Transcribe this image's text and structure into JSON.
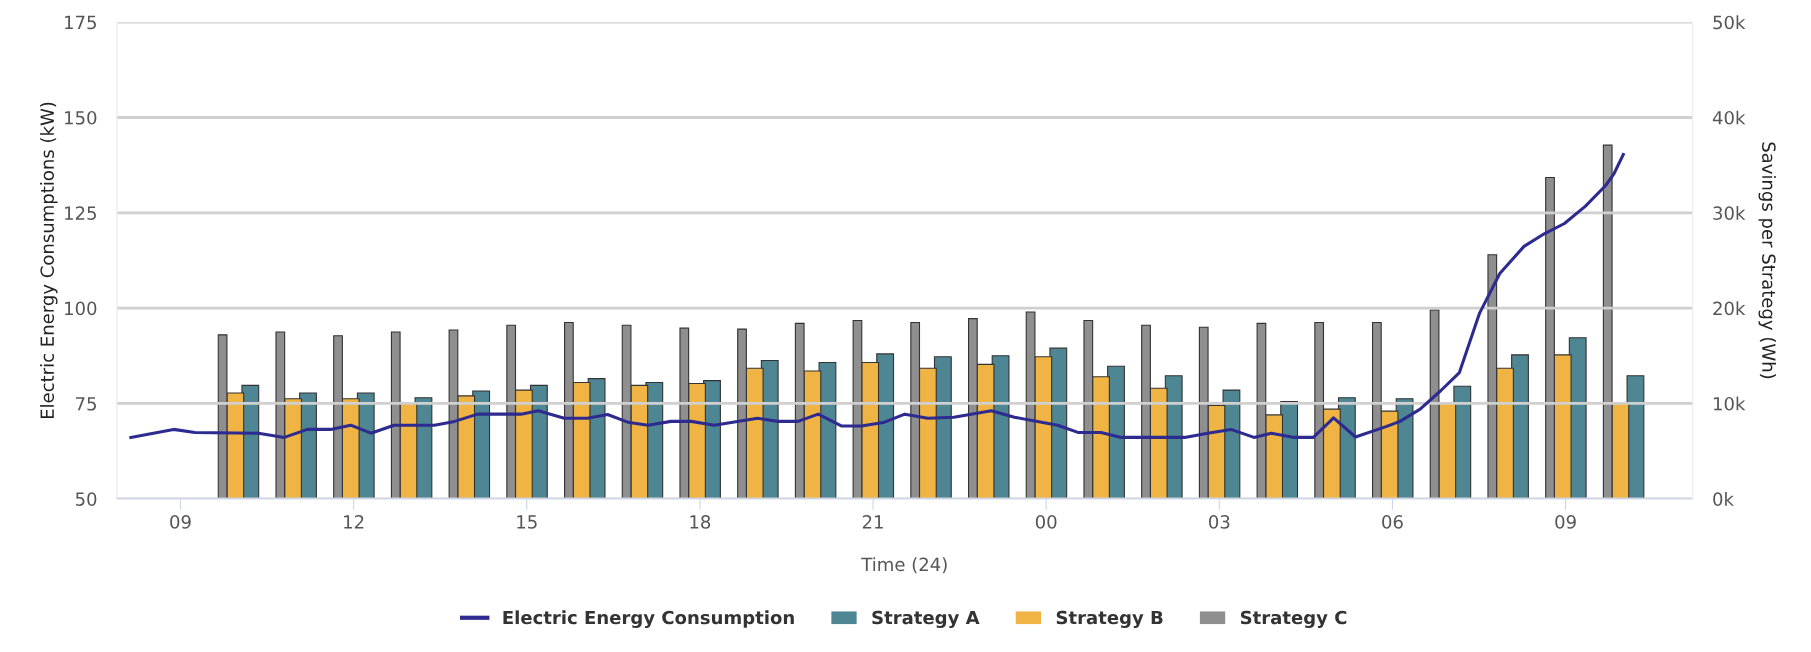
{
  "chart_data": {
    "type": "bar",
    "xlabel": "Time (24)",
    "ylabel": "Electric Energy Consumptions (kW)",
    "y2label": "Savings per Strategy (Wh)",
    "xlim": [
      7.9,
      35.2
    ],
    "xticks": [
      {
        "value": 9,
        "label": "09"
      },
      12,
      15,
      18,
      21,
      {
        "value": 24,
        "label": "00"
      },
      {
        "value": 27,
        "label": "03"
      },
      {
        "value": 30,
        "label": "06"
      },
      {
        "value": 33,
        "label": "09"
      }
    ],
    "ylim": [
      50,
      175
    ],
    "yticks": [
      50,
      75,
      100,
      125,
      150,
      175
    ],
    "y2lim": [
      0,
      50000
    ],
    "y2ticks": [
      {
        "value": 0,
        "label": "0k"
      },
      {
        "value": 10000,
        "label": "10k"
      },
      {
        "value": 20000,
        "label": "20k"
      },
      {
        "value": 30000,
        "label": "30k"
      },
      {
        "value": 40000,
        "label": "40k"
      },
      {
        "value": 50000,
        "label": "50k"
      }
    ],
    "x": [
      10,
      11,
      12,
      13,
      14,
      15,
      16,
      17,
      18,
      19,
      20,
      21,
      22,
      23,
      24,
      25,
      26,
      27,
      28,
      29,
      30,
      31,
      32,
      33,
      34
    ],
    "grid": "y",
    "legend": "bottom",
    "line_style": "solid",
    "marker": "none",
    "series": [
      {
        "name": "Electric Energy Consumption",
        "type": "line",
        "axis": "y",
        "color": "#2d2b8f",
        "x": [
          8.14,
          8.88,
          9.25,
          10.35,
          10.8,
          11.2,
          11.6,
          11.95,
          12.3,
          12.7,
          13.4,
          13.75,
          14.15,
          14.9,
          15.2,
          15.65,
          16.05,
          16.4,
          16.75,
          17.1,
          17.5,
          17.85,
          18.25,
          19.0,
          19.35,
          19.7,
          20.05,
          20.45,
          20.8,
          21.2,
          21.55,
          21.95,
          22.4,
          23.05,
          23.45,
          23.85,
          24.2,
          24.55,
          24.95,
          25.3,
          26.4,
          26.8,
          27.2,
          27.6,
          27.9,
          28.3,
          28.63,
          28.98,
          29.36,
          29.9,
          30.13,
          30.48,
          30.84,
          31.16,
          31.51,
          31.86,
          32.28,
          32.63,
          32.98,
          33.34,
          33.69,
          33.84,
          34.0
        ],
        "values": [
          66.1,
          68.2,
          67.4,
          67.2,
          66.1,
          68.2,
          68.2,
          69.3,
          67.2,
          69.3,
          69.3,
          70.3,
          72.2,
          72.2,
          73.1,
          71.1,
          71.1,
          72.1,
          70.1,
          69.3,
          70.3,
          70.3,
          69.3,
          71.1,
          70.3,
          70.3,
          72.2,
          69.1,
          69.1,
          70.1,
          72.2,
          71.1,
          71.4,
          73.1,
          71.4,
          70.3,
          69.3,
          67.4,
          67.4,
          66.1,
          66.1,
          67.2,
          68.2,
          66.1,
          67.2,
          66.1,
          66.1,
          71.2,
          66.2,
          69.0,
          70.3,
          73.5,
          78.4,
          83.1,
          98.7,
          109.1,
          116.2,
          119.5,
          122.2,
          126.7,
          132.1,
          135.3,
          140.3
        ]
      },
      {
        "name": "Strategy A",
        "axis": "y2",
        "color": "#4e8793",
        "values": [
          11900,
          11100,
          11100,
          10600,
          11300,
          11900,
          12600,
          12200,
          12400,
          14500,
          14300,
          15200,
          14900,
          15000,
          15800,
          13900,
          12900,
          11400,
          10200,
          10600,
          10500,
          11800,
          15100,
          16900,
          12900
        ]
      },
      {
        "name": "Strategy B",
        "axis": "y2",
        "color": "#f0b444",
        "values": [
          11100,
          10500,
          10500,
          10100,
          10800,
          11400,
          12200,
          11900,
          12100,
          13700,
          13400,
          14300,
          13700,
          14100,
          14900,
          12800,
          11600,
          9800,
          8800,
          9400,
          9200,
          10100,
          13700,
          15100,
          10100
        ]
      },
      {
        "name": "Strategy C",
        "axis": "y2",
        "color": "#8f8f8f",
        "values": [
          17200,
          17500,
          17100,
          17500,
          17700,
          18200,
          18500,
          18200,
          17900,
          17800,
          18400,
          18700,
          18500,
          18900,
          19600,
          18700,
          18200,
          18000,
          18400,
          18500,
          18500,
          19800,
          25600,
          33700,
          37100
        ]
      }
    ]
  }
}
